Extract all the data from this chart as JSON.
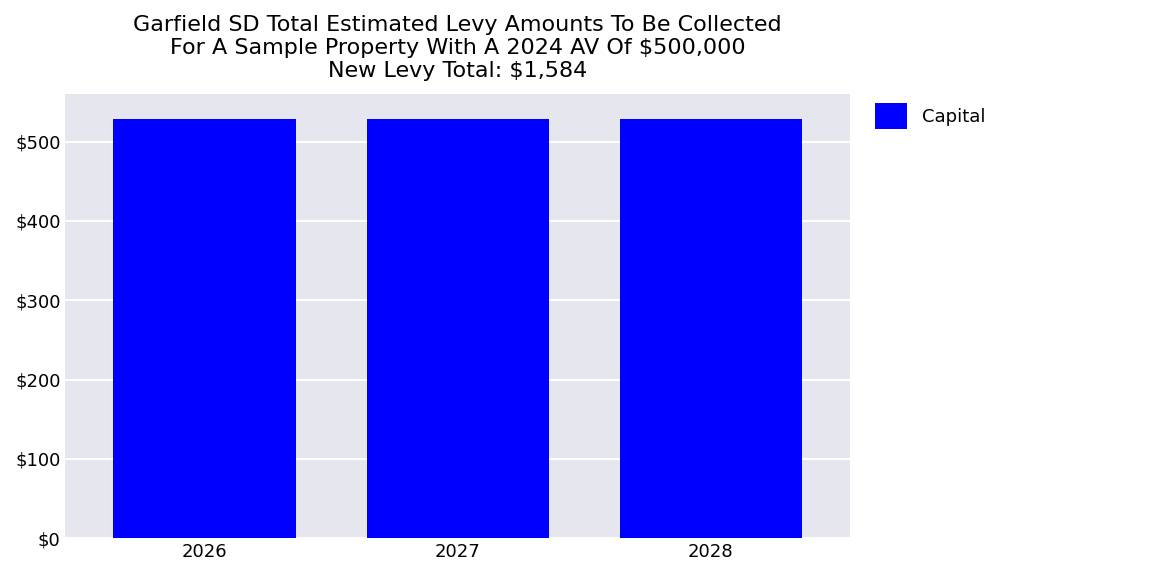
{
  "title_line1": "Garfield SD Total Estimated Levy Amounts To Be Collected",
  "title_line2": "For A Sample Property With A 2024 AV Of $500,000",
  "title_line3": "New Levy Total: $1,584",
  "categories": [
    2026,
    2027,
    2028
  ],
  "capital_values": [
    528,
    528,
    528
  ],
  "bar_color": "#0000FF",
  "legend_label": "Capital",
  "ylim": [
    0,
    560
  ],
  "yticks": [
    0,
    100,
    200,
    300,
    400,
    500
  ],
  "ytick_labels": [
    "$0",
    "$100",
    "$200",
    "$300",
    "$400",
    "$500"
  ],
  "plot_bg_color": "#E6E6EE",
  "figure_bg_color": "#FFFFFF",
  "title_fontsize": 16,
  "tick_fontsize": 13,
  "legend_fontsize": 13,
  "bar_width": 0.72
}
